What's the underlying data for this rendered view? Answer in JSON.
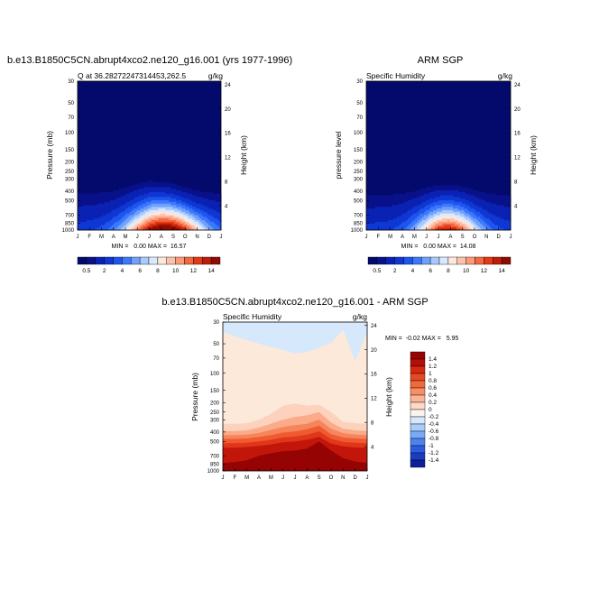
{
  "chart_data": [
    {
      "type": "heatmap",
      "variable": "Q",
      "main_title": "b.e13.B1850C5CN.abrupt4xco2.ne120_g16.001 (yrs 1977-1996)",
      "left_title": "Q at 36.28272247314453,262.5",
      "right_title": "g/kg",
      "ylabel": "Pressure (mb)",
      "ylabel_right": "Height (km)",
      "x_categories": [
        "J",
        "F",
        "M",
        "A",
        "M",
        "J",
        "J",
        "A",
        "S",
        "O",
        "N",
        "D",
        "J"
      ],
      "y_ticks": [
        30,
        50,
        70,
        100,
        150,
        200,
        250,
        300,
        400,
        500,
        700,
        850,
        1000
      ],
      "y_ticks_right": [
        24,
        20,
        16,
        12,
        8,
        4
      ],
      "ylim": [
        1000,
        30
      ],
      "stats": "MIN =   0.00 MAX =  16.57",
      "min": 0.0,
      "max": 16.57,
      "colorbar_ticks": [
        "0.5",
        "2",
        "4",
        "6",
        "8",
        "10",
        "12",
        "14"
      ],
      "field": {
        "months": [
          0,
          1,
          2,
          3,
          4,
          5,
          6,
          7,
          8,
          9,
          10,
          11,
          12
        ],
        "top_moist_level_mb": [
          420,
          420,
          415,
          400,
          370,
          335,
          315,
          320,
          335,
          365,
          395,
          415,
          420
        ],
        "peak_center_month": 7.3,
        "peak_width_months": 3.2,
        "peak_value": 16.57
      }
    },
    {
      "type": "heatmap",
      "variable": "Q",
      "main_title": "ARM SGP",
      "left_title": "Specific Humidity",
      "right_title": "g/kg",
      "ylabel": "pressure level",
      "ylabel_right": "Height (km)",
      "x_categories": [
        "J",
        "F",
        "M",
        "A",
        "M",
        "J",
        "J",
        "A",
        "S",
        "O",
        "N",
        "D",
        "J"
      ],
      "y_ticks": [
        30,
        50,
        70,
        100,
        150,
        200,
        250,
        300,
        400,
        500,
        700,
        850,
        1000
      ],
      "y_ticks_right": [
        24,
        20,
        16,
        12,
        8,
        4
      ],
      "ylim": [
        1000,
        30
      ],
      "stats": "MIN =   0.00 MAX =  14.08",
      "min": 0.0,
      "max": 14.08,
      "colorbar_ticks": [
        "0.5",
        "2",
        "4",
        "6",
        "8",
        "10",
        "12",
        "14"
      ],
      "field": {
        "months": [
          0,
          1,
          2,
          3,
          4,
          5,
          6,
          7,
          8,
          9,
          10,
          11,
          12
        ],
        "top_moist_level_mb": [
          440,
          440,
          435,
          425,
          400,
          370,
          345,
          345,
          360,
          390,
          420,
          435,
          440
        ],
        "peak_center_month": 6.8,
        "peak_width_months": 2.6,
        "peak_value": 14.08
      }
    },
    {
      "type": "heatmap",
      "variable": "Q difference",
      "main_title": "b.e13.B1850C5CN.abrupt4xco2.ne120_g16.001 - ARM SGP",
      "left_title": "Specific Humidity",
      "right_title": "g/kg",
      "ylabel": "Pressure (mb)",
      "ylabel_right": "Height (km)",
      "x_categories": [
        "J",
        "F",
        "M",
        "A",
        "M",
        "J",
        "J",
        "A",
        "S",
        "O",
        "N",
        "D",
        "J"
      ],
      "y_ticks": [
        30,
        50,
        70,
        100,
        150,
        200,
        250,
        300,
        400,
        500,
        700,
        850,
        1000
      ],
      "y_ticks_right": [
        24,
        20,
        16,
        12,
        8,
        4
      ],
      "ylim": [
        1000,
        30
      ],
      "stats": "MIN =  -0.02 MAX =   5.95",
      "min": -0.02,
      "max": 5.95,
      "colorbar_ticks": [
        "1.4",
        "1.2",
        "1",
        "0.8",
        "0.6",
        "0.4",
        "0.2",
        "0",
        "-0.2",
        "-0.4",
        "-0.6",
        "-0.8",
        "-1",
        "-1.2",
        "-1.4"
      ],
      "field": {
        "months": [
          0,
          1,
          2,
          3,
          4,
          5,
          6,
          7,
          8,
          9,
          10,
          11,
          12
        ],
        "negative_top_mb": [
          38,
          42,
          46,
          50,
          54,
          58,
          63,
          61,
          55,
          49,
          36,
          75,
          38
        ],
        "layer_0_2_top_mb": [
          330,
          330,
          325,
          300,
          260,
          215,
          205,
          215,
          210,
          250,
          315,
          325,
          330
        ],
        "layer_0_4_top_mb": [
          390,
          390,
          385,
          360,
          330,
          300,
          280,
          270,
          250,
          320,
          370,
          385,
          390
        ],
        "layer_0_6_top_mb": [
          430,
          430,
          425,
          410,
          380,
          355,
          340,
          330,
          300,
          370,
          410,
          425,
          430
        ],
        "layer_0_8_top_mb": [
          470,
          470,
          465,
          450,
          430,
          405,
          395,
          375,
          345,
          420,
          455,
          465,
          470
        ],
        "layer_1_0_top_mb": [
          520,
          520,
          515,
          500,
          480,
          455,
          445,
          425,
          395,
          470,
          505,
          515,
          520
        ],
        "layer_1_2_top_mb": [
          580,
          580,
          570,
          555,
          535,
          510,
          500,
          480,
          450,
          525,
          560,
          575,
          580
        ],
        "layer_1_4_top_mb": [
          830,
          810,
          780,
          700,
          660,
          630,
          620,
          590,
          500,
          620,
          740,
          800,
          830
        ]
      }
    }
  ]
}
